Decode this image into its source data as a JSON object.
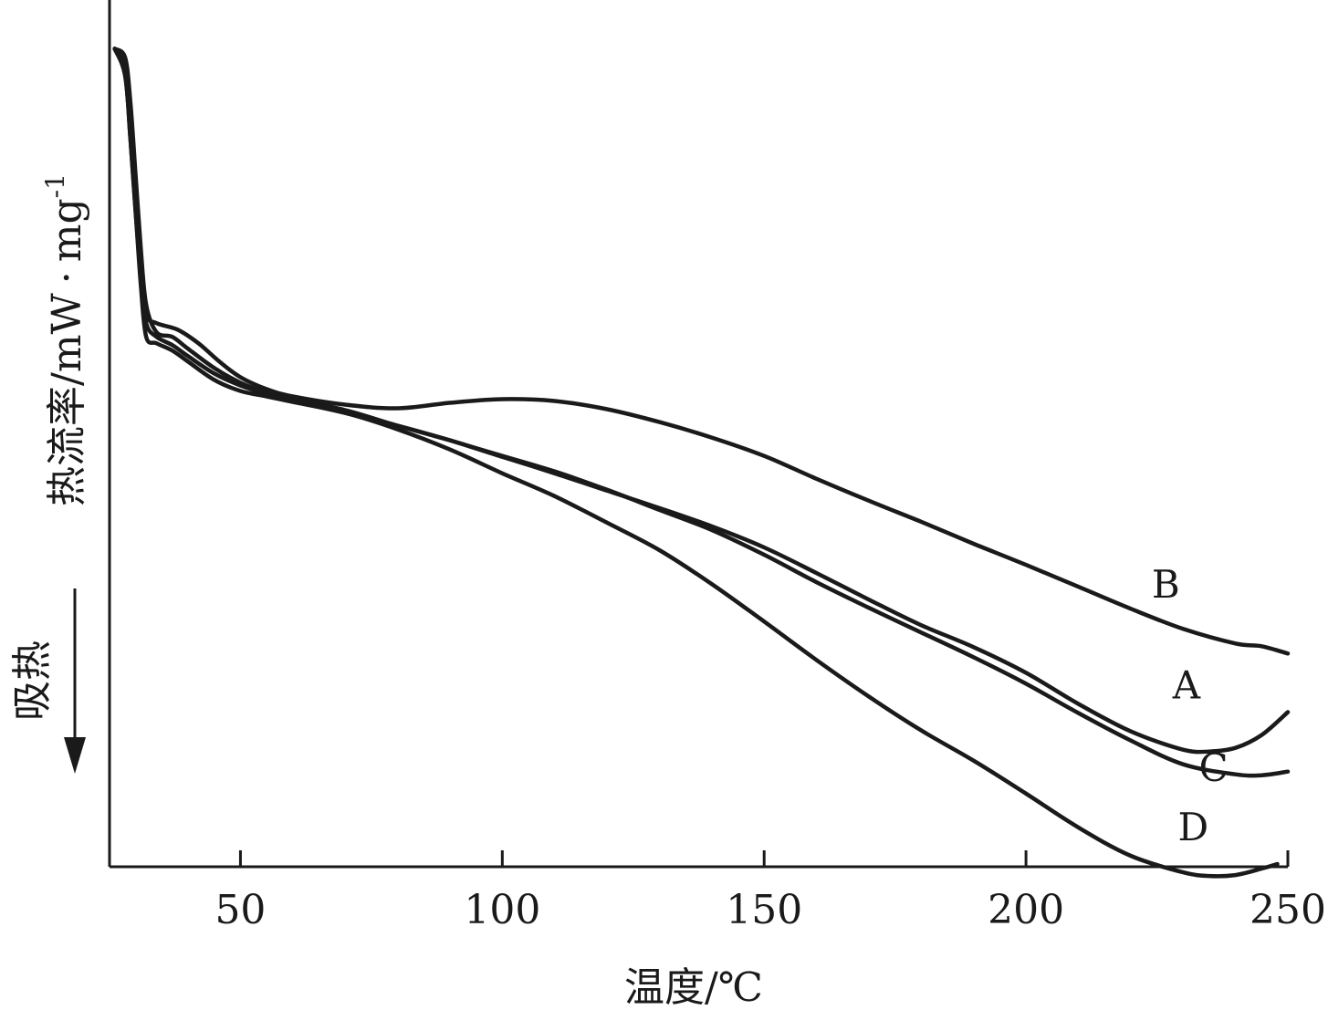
{
  "chart_data": {
    "type": "line",
    "xlabel": "温度/℃",
    "ylabel": "热流率/mW·mg⁻¹",
    "ylabel_main": "热流率/mW",
    "ylabel_dot": "·",
    "ylabel_unit": "mg",
    "ylabel_exp": "-1",
    "endo_label": "吸热",
    "xlim": [
      25,
      250
    ],
    "ylim": [
      0,
      100
    ],
    "x_ticks": [
      50,
      100,
      150,
      200,
      250
    ],
    "x_tick_labels": [
      "50",
      "100",
      "150",
      "200",
      "250"
    ],
    "series": [
      {
        "name": "A",
        "points": [
          [
            26,
            88
          ],
          [
            28,
            87
          ],
          [
            29,
            82
          ],
          [
            30,
            74
          ],
          [
            31,
            66
          ],
          [
            32,
            60
          ],
          [
            34,
            57
          ],
          [
            37,
            56.5
          ],
          [
            40,
            55.2
          ],
          [
            45,
            53.1
          ],
          [
            50,
            51.5
          ],
          [
            55,
            50.4
          ],
          [
            60,
            49.5
          ],
          [
            70,
            48.2
          ],
          [
            80,
            46.8
          ],
          [
            90,
            45.2
          ],
          [
            100,
            43.4
          ],
          [
            110,
            41.6
          ],
          [
            120,
            39.7
          ],
          [
            130,
            37.8
          ],
          [
            140,
            35.8
          ],
          [
            150,
            33.5
          ],
          [
            160,
            30.7
          ],
          [
            170,
            27.8
          ],
          [
            180,
            25
          ],
          [
            190,
            22.6
          ],
          [
            200,
            19.8
          ],
          [
            210,
            16.4
          ],
          [
            220,
            13.4
          ],
          [
            230,
            11.4
          ],
          [
            235,
            11.2
          ],
          [
            240,
            11.6
          ],
          [
            245,
            13
          ],
          [
            250,
            15.5
          ]
        ]
      },
      {
        "name": "B",
        "points": [
          [
            26,
            88
          ],
          [
            28,
            86
          ],
          [
            29,
            80
          ],
          [
            30,
            72
          ],
          [
            31,
            64
          ],
          [
            32,
            59
          ],
          [
            34,
            58
          ],
          [
            38,
            57.3
          ],
          [
            42,
            55.8
          ],
          [
            46,
            53.8
          ],
          [
            50,
            52.1
          ],
          [
            55,
            50.8
          ],
          [
            60,
            50
          ],
          [
            70,
            49.1
          ],
          [
            80,
            48.7
          ],
          [
            90,
            49.3
          ],
          [
            100,
            49.7
          ],
          [
            110,
            49.5
          ],
          [
            120,
            48.6
          ],
          [
            130,
            47.2
          ],
          [
            140,
            45.5
          ],
          [
            150,
            43.5
          ],
          [
            160,
            41
          ],
          [
            170,
            38.6
          ],
          [
            180,
            36.3
          ],
          [
            190,
            33.9
          ],
          [
            200,
            31.6
          ],
          [
            210,
            29.2
          ],
          [
            220,
            26.8
          ],
          [
            230,
            24.6
          ],
          [
            240,
            23
          ],
          [
            245,
            22.7
          ],
          [
            250,
            21.9
          ]
        ]
      },
      {
        "name": "C",
        "points": [
          [
            26,
            88
          ],
          [
            28,
            85
          ],
          [
            29,
            78
          ],
          [
            30,
            70
          ],
          [
            31,
            63
          ],
          [
            32,
            58
          ],
          [
            34,
            56.5
          ],
          [
            37,
            55.6
          ],
          [
            40,
            54.4
          ],
          [
            45,
            52.5
          ],
          [
            50,
            51.2
          ],
          [
            55,
            50.3
          ],
          [
            60,
            49.7
          ],
          [
            70,
            48.5
          ],
          [
            80,
            46.8
          ],
          [
            90,
            45.2
          ],
          [
            100,
            43.5
          ],
          [
            110,
            41.8
          ],
          [
            120,
            39.8
          ],
          [
            130,
            37.6
          ],
          [
            140,
            35.4
          ],
          [
            150,
            32.7
          ],
          [
            160,
            29.7
          ],
          [
            170,
            26.9
          ],
          [
            180,
            24.2
          ],
          [
            190,
            21.5
          ],
          [
            200,
            18.6
          ],
          [
            210,
            15.4
          ],
          [
            220,
            12.4
          ],
          [
            230,
            9.8
          ],
          [
            240,
            8.7
          ],
          [
            245,
            8.6
          ],
          [
            250,
            9
          ]
        ]
      },
      {
        "name": "D",
        "points": [
          [
            26,
            88
          ],
          [
            28,
            85
          ],
          [
            29,
            78
          ],
          [
            30,
            70
          ],
          [
            31,
            62
          ],
          [
            32,
            56.5
          ],
          [
            34,
            55.8
          ],
          [
            37,
            55
          ],
          [
            40,
            53.8
          ],
          [
            45,
            51.8
          ],
          [
            50,
            50.6
          ],
          [
            55,
            50
          ],
          [
            60,
            49.4
          ],
          [
            70,
            48.2
          ],
          [
            80,
            46.4
          ],
          [
            90,
            44.2
          ],
          [
            100,
            41.6
          ],
          [
            110,
            39.1
          ],
          [
            120,
            36.2
          ],
          [
            130,
            33.2
          ],
          [
            140,
            29.5
          ],
          [
            150,
            25.4
          ],
          [
            160,
            21.2
          ],
          [
            170,
            17.2
          ],
          [
            180,
            13.5
          ],
          [
            190,
            10.2
          ],
          [
            200,
            6.6
          ],
          [
            210,
            2.9
          ],
          [
            220,
            -0.2
          ],
          [
            230,
            -2
          ],
          [
            235,
            -2.4
          ],
          [
            240,
            -2.3
          ],
          [
            245,
            -1.6
          ],
          [
            248,
            -1.1
          ]
        ]
      }
    ],
    "series_label_positions": [
      {
        "name": "B",
        "x": 224,
        "y": 28
      },
      {
        "name": "A",
        "x": 228,
        "y": 17
      },
      {
        "name": "C",
        "x": 233,
        "y": 8
      },
      {
        "name": "D",
        "x": 229,
        "y": 1.5
      }
    ],
    "grid": false,
    "legend": "none"
  }
}
